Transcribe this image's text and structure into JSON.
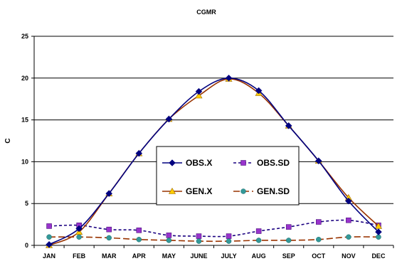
{
  "chart_data": {
    "type": "line",
    "title": "CGMR",
    "xlabel": "",
    "ylabel": "C",
    "ylim": [
      0,
      25
    ],
    "yticks": [
      0,
      5,
      10,
      15,
      20,
      25
    ],
    "grid": "horizontal",
    "legend_position": "center",
    "categories": [
      "JAN",
      "FEB",
      "MAR",
      "APR",
      "MAY",
      "JUNE",
      "JULY",
      "AUG",
      "SEP",
      "OCT",
      "NOV",
      "DEC"
    ],
    "series": [
      {
        "name": "OBS.X",
        "color": "#000080",
        "dash": "solid",
        "marker": "diamond",
        "values": [
          0.1,
          2.0,
          6.2,
          11.0,
          15.1,
          18.4,
          20.0,
          18.5,
          14.3,
          10.1,
          5.3,
          1.6
        ]
      },
      {
        "name": "OBS.SD",
        "color": "#1a0080",
        "marker_color": "#9933cc",
        "dash": "short",
        "marker": "square",
        "values": [
          2.3,
          2.4,
          1.9,
          1.8,
          1.2,
          1.1,
          1.1,
          1.7,
          2.2,
          2.8,
          3.0,
          2.4
        ]
      },
      {
        "name": "GEN.X",
        "color": "#993300",
        "marker_color": "#ffcc00",
        "dash": "solid",
        "marker": "triangle",
        "values": [
          0.0,
          1.6,
          6.2,
          11.0,
          15.1,
          17.9,
          19.9,
          18.2,
          14.3,
          10.1,
          5.7,
          2.3
        ]
      },
      {
        "name": "GEN.SD",
        "color": "#993300",
        "marker_color": "#339999",
        "dash": "long",
        "marker": "circle",
        "values": [
          1.0,
          1.0,
          0.9,
          0.7,
          0.6,
          0.5,
          0.5,
          0.6,
          0.6,
          0.7,
          1.0,
          1.0
        ]
      }
    ]
  }
}
